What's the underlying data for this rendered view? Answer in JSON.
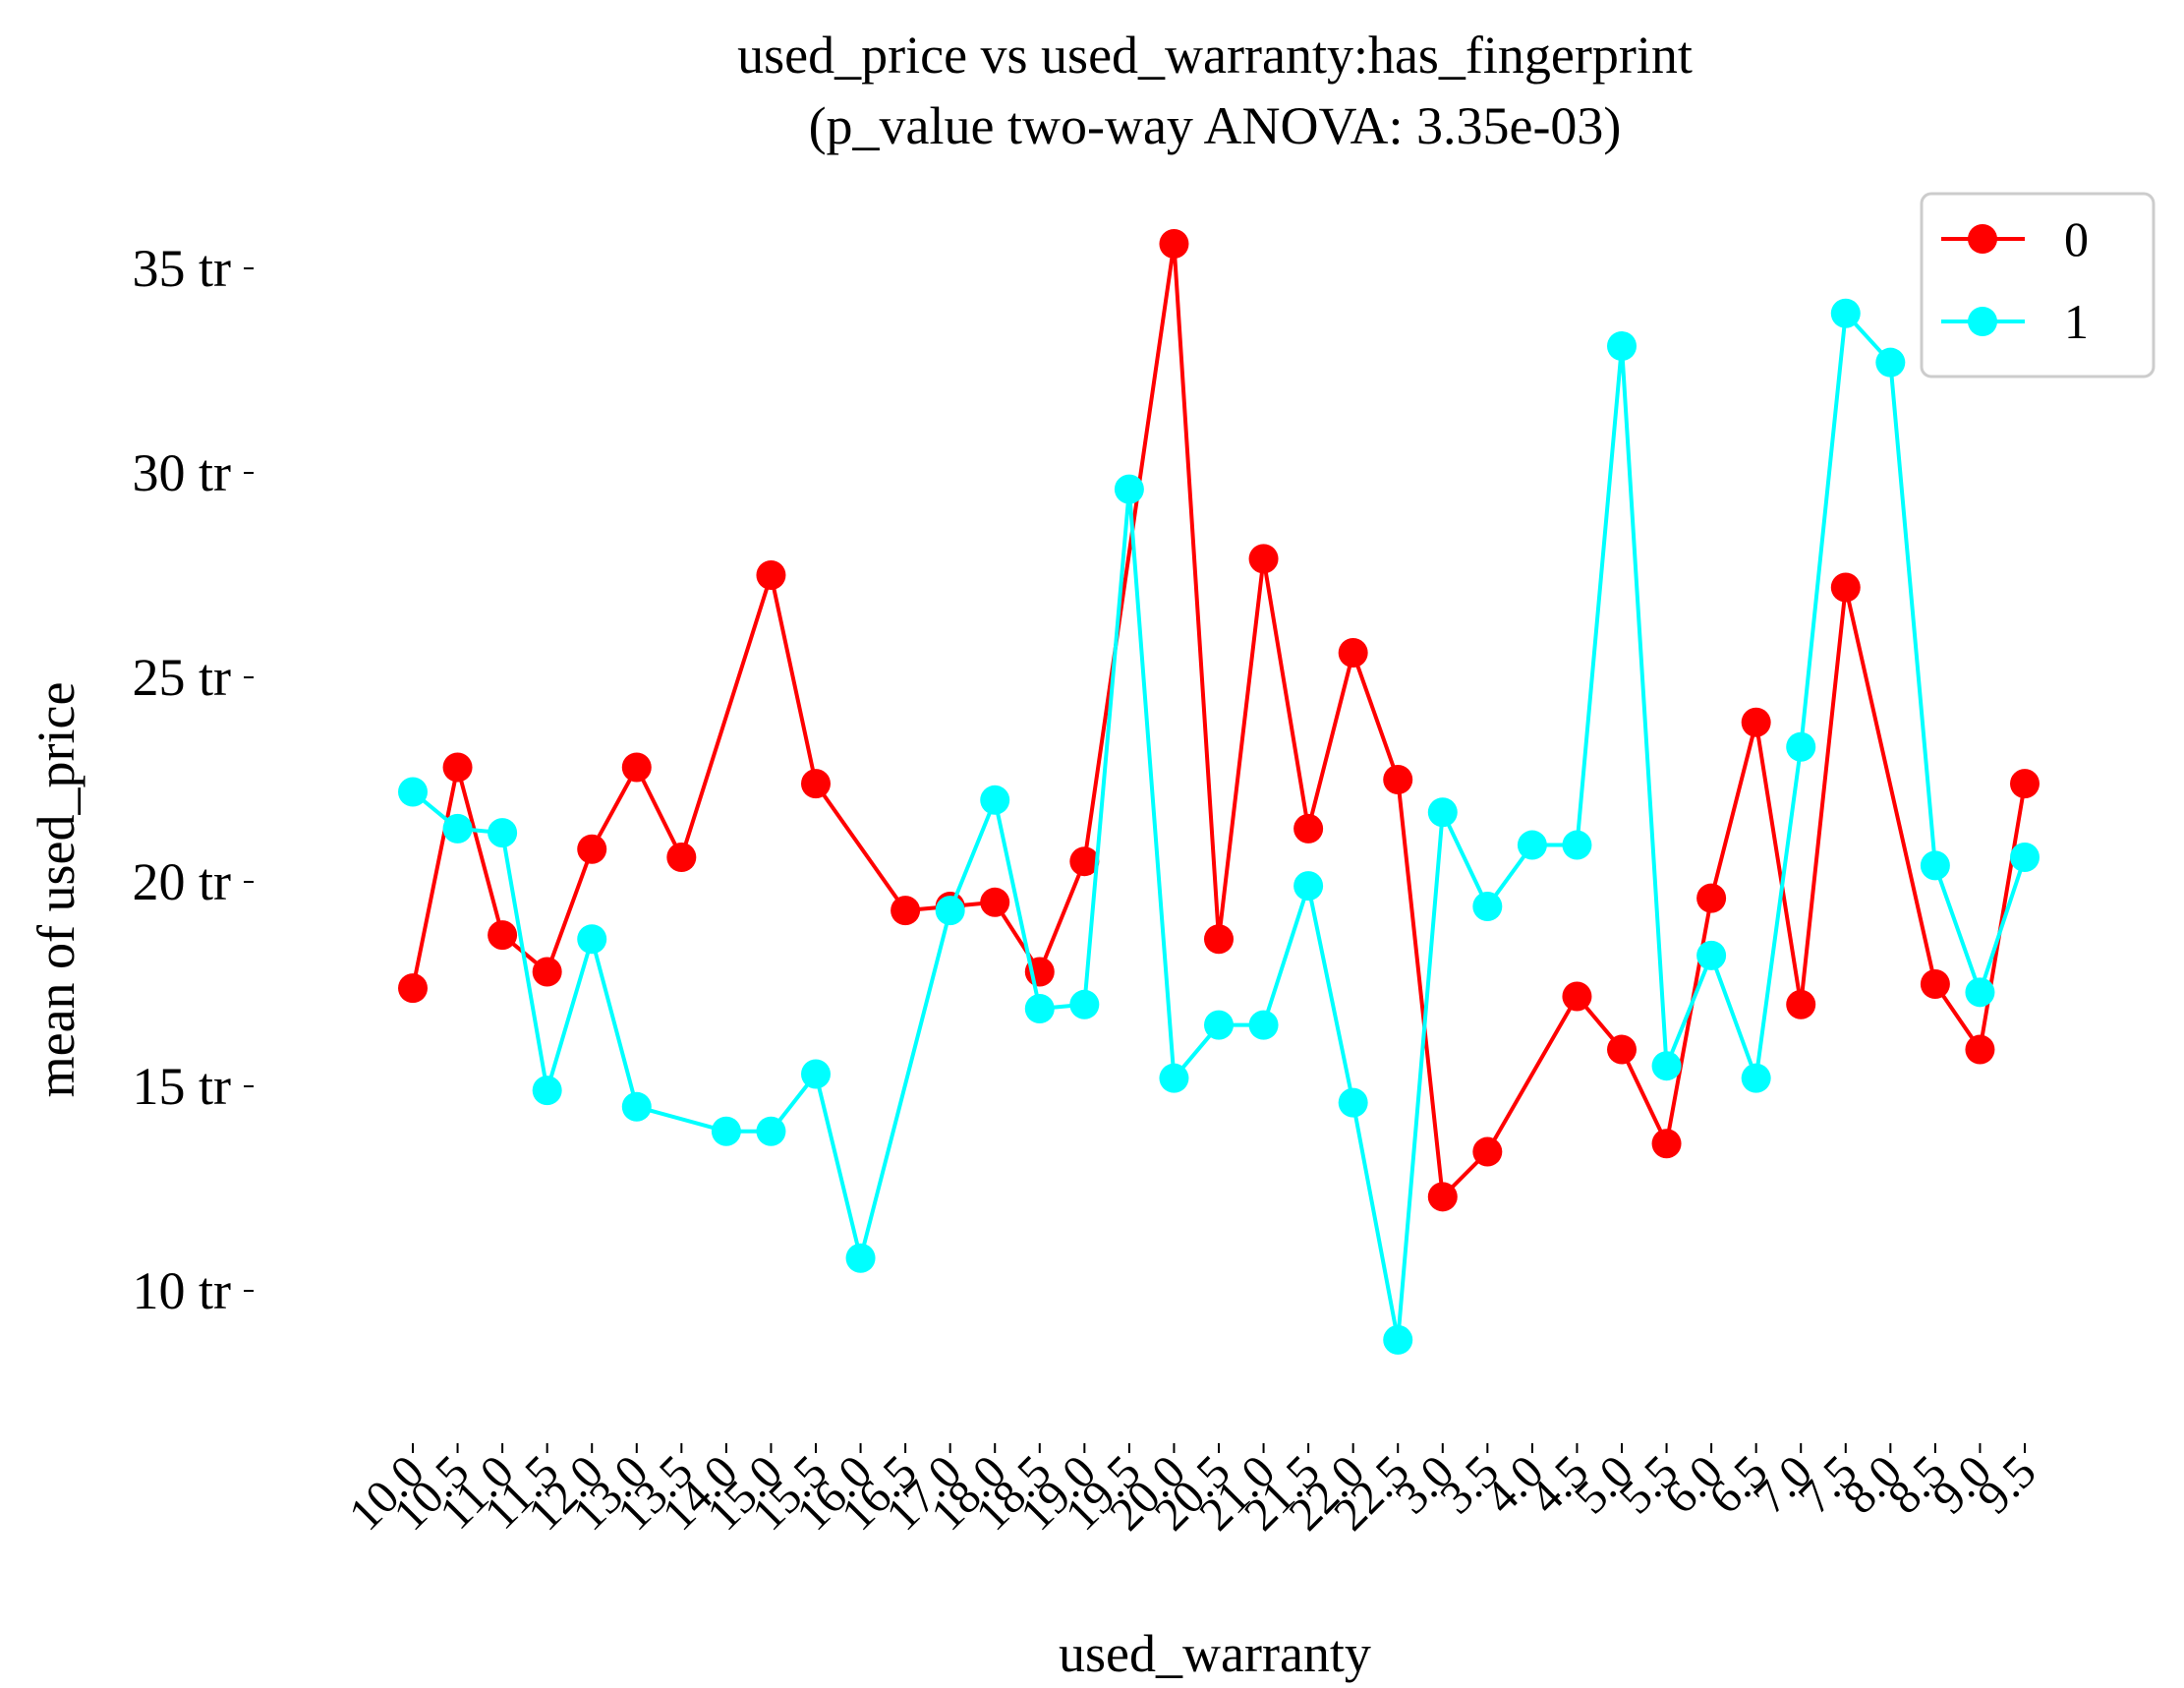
{
  "chart_data": {
    "type": "line",
    "title": "used_price vs used_warranty:has_fingerprint",
    "subtitle": "(p_value two-way ANOVA: 3.35e-03)",
    "xlabel": "used_warranty",
    "ylabel": "mean of used_price",
    "ylim": [
      6.5,
      37.5
    ],
    "yticks": [
      {
        "value": 10,
        "label": "10 tr"
      },
      {
        "value": 15,
        "label": "15 tr"
      },
      {
        "value": 20,
        "label": "20 tr"
      },
      {
        "value": 25,
        "label": "25 tr"
      },
      {
        "value": 30,
        "label": "30 tr"
      },
      {
        "value": 35,
        "label": "35 tr"
      }
    ],
    "categories": [
      "10.0",
      "10.5",
      "11.0",
      "11.5",
      "12.0",
      "13.0",
      "13.5",
      "14.0",
      "15.0",
      "15.5",
      "16.0",
      "16.5",
      "17.0",
      "18.0",
      "18.5",
      "19.0",
      "19.5",
      "20.0",
      "20.5",
      "21.0",
      "21.5",
      "22.0",
      "22.5",
      "3.0",
      "3.5",
      "4.0",
      "4.5",
      "5.0",
      "5.5",
      "6.0",
      "6.5",
      "7.0",
      "7.5",
      "8.0",
      "8.5",
      "9.0",
      "9.5"
    ],
    "grid": false,
    "legend_position": "top-right",
    "series": [
      {
        "name": "0",
        "color": "#ff0000",
        "values": [
          17.4,
          22.8,
          18.7,
          17.8,
          20.8,
          22.8,
          20.6,
          null,
          27.5,
          22.4,
          null,
          19.3,
          19.4,
          19.5,
          17.8,
          20.5,
          null,
          35.6,
          18.6,
          27.9,
          21.3,
          25.6,
          22.5,
          12.3,
          13.4,
          null,
          17.2,
          15.9,
          13.6,
          19.6,
          23.9,
          17.0,
          27.2,
          null,
          17.5,
          15.9,
          22.4
        ]
      },
      {
        "name": "1",
        "color": "#00ffff",
        "values": [
          22.2,
          21.3,
          21.2,
          14.9,
          18.6,
          14.5,
          null,
          13.9,
          13.9,
          15.3,
          10.8,
          null,
          19.3,
          22.0,
          16.9,
          17.0,
          29.6,
          15.2,
          16.5,
          16.5,
          19.9,
          14.6,
          8.8,
          21.7,
          19.4,
          20.9,
          20.9,
          33.1,
          15.5,
          18.2,
          15.2,
          23.3,
          33.9,
          32.7,
          20.4,
          17.3,
          20.6
        ]
      }
    ]
  }
}
